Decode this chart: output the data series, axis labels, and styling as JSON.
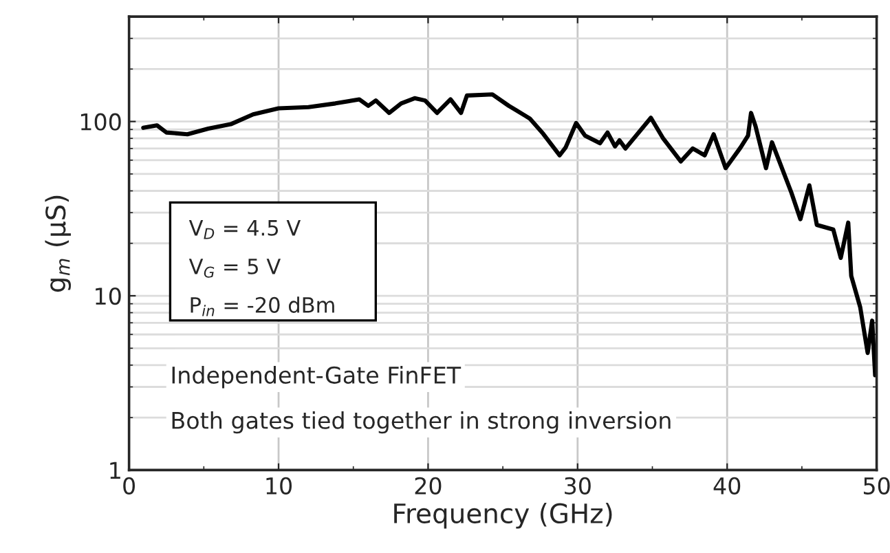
{
  "chart_data": {
    "type": "line",
    "xlabel": "Frequency (GHz)",
    "ylabel": "g$_{m}$ (µS)",
    "xlim": [
      0,
      50
    ],
    "ylim": [
      1,
      400
    ],
    "xticks": [
      0,
      10,
      20,
      30,
      40,
      50
    ],
    "yticks": [
      1,
      10,
      100
    ],
    "log": "y",
    "grid": true,
    "marker": "none",
    "line_style": "solid",
    "series": [
      {
        "color": "#000000",
        "x": [
          0.95,
          1.87,
          2.5,
          3.9,
          5.3,
          6.8,
          8.3,
          10,
          12,
          13.8,
          15.4,
          16,
          16.5,
          17.4,
          18.2,
          19.1,
          19.8,
          20.6,
          21.5,
          22.2,
          22.6,
          24.3,
          25.4,
          25.9,
          26.8,
          27.7,
          28.8,
          29.2,
          29.9,
          30.5,
          31.5,
          32,
          32.5,
          32.8,
          33.2,
          34.9,
          35.7,
          36.9,
          37.7,
          38.5,
          39.1,
          39.9,
          40.9,
          41.4,
          41.6,
          41.9,
          42.6,
          43.0,
          44.3,
          44.9,
          45.5,
          46,
          47.1,
          47.6,
          48.1,
          48.3,
          48.9,
          49.4,
          49.7,
          49.9
        ],
        "values": [
          92,
          95,
          86.5,
          84.5,
          91,
          96.5,
          110,
          119,
          121,
          127,
          134,
          123,
          132,
          112,
          127,
          136,
          132,
          112,
          134,
          112,
          141,
          143,
          123,
          116,
          104,
          85,
          64,
          71,
          98,
          83,
          75,
          86.5,
          72,
          78,
          70,
          105,
          80.5,
          59,
          70,
          64,
          84.5,
          54,
          71,
          83,
          112,
          94,
          54,
          76,
          39,
          27.5,
          43,
          25.5,
          24,
          16.5,
          26.3,
          13,
          8.6,
          4.7,
          7.2,
          3.5
        ]
      }
    ],
    "annotations": [
      "V$_{D}$ = 4.5 V",
      "V$_{G}$ = 5 V",
      "P$_{in}$ = -20 dBm",
      "Independent-Gate FinFET",
      "Both gates tied together in strong inversion"
    ]
  }
}
